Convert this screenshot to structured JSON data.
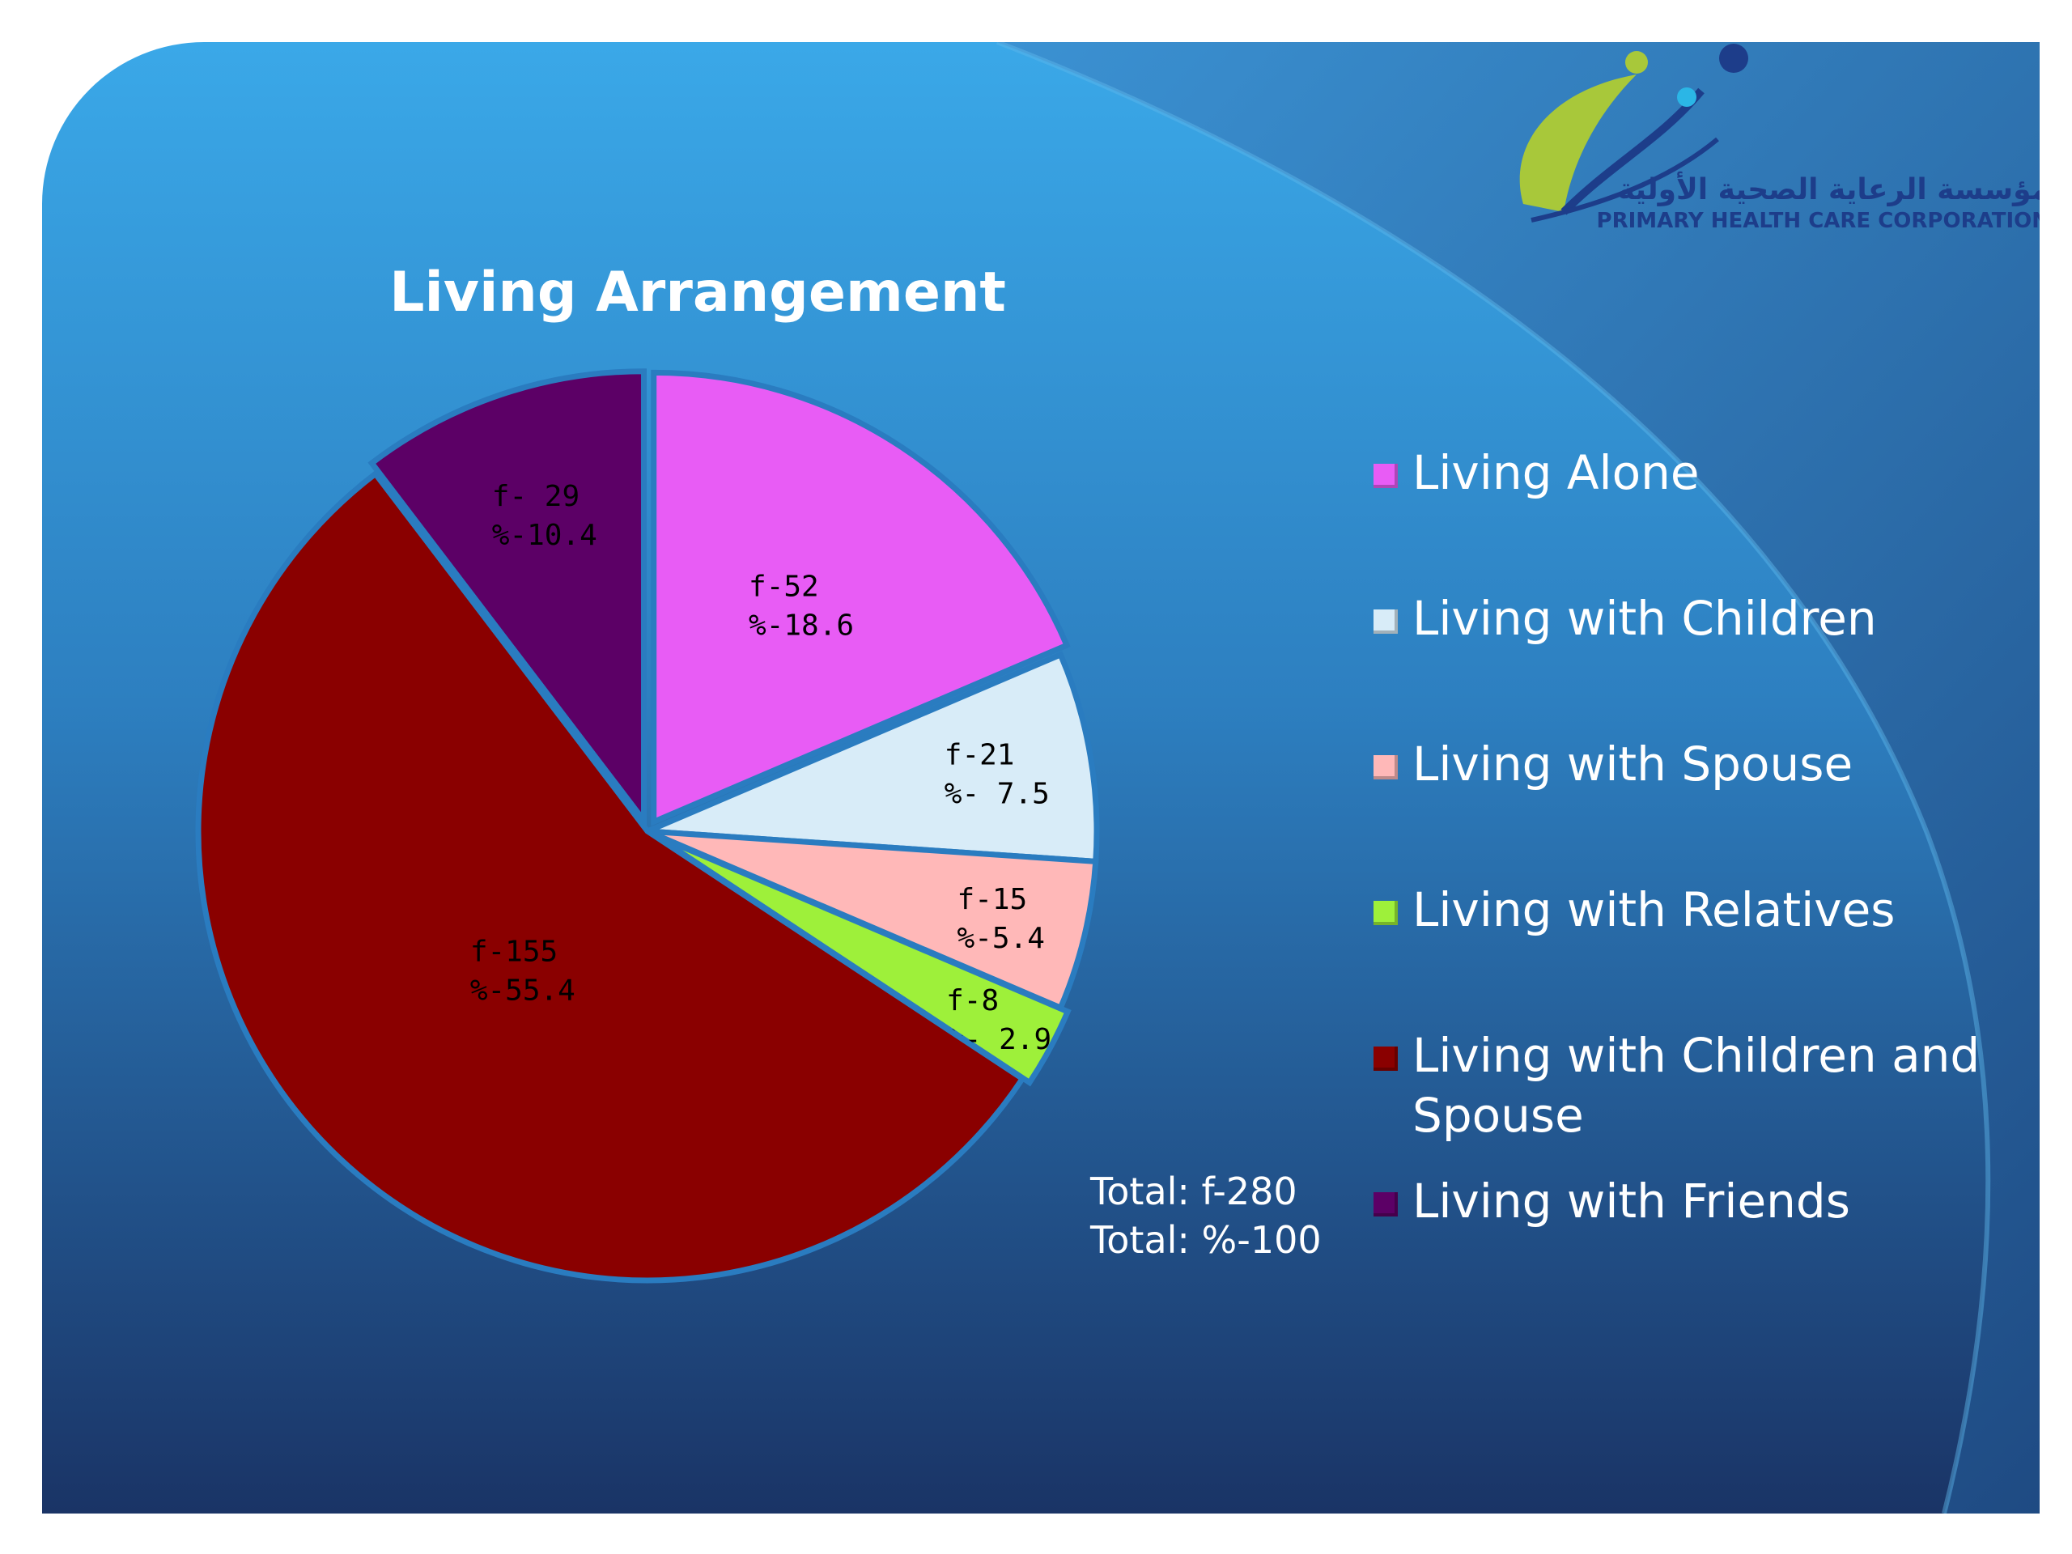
{
  "slide": {
    "colors": {
      "bg_top": "#3aa8e8",
      "bg_bottom": "#1a3466",
      "swoosh": "#2a6fb5"
    }
  },
  "logo": {
    "arabic": "مؤسسة الرعاية الصحية الأولية",
    "english": "PRIMARY  HEALTH CARE CORPORATION",
    "colors": {
      "leaf_green": "#a8c83a",
      "navy": "#1d3d8a",
      "cyan": "#2bb6e6"
    }
  },
  "chart_data": {
    "type": "pie",
    "title": "Living Arrangement",
    "categories": [
      "Living Alone",
      "Living with Children",
      "Living with Spouse",
      "Living with Relatives",
      "Living with Children and Spouse",
      "Living with Friends"
    ],
    "values": [
      52,
      21,
      15,
      8,
      155,
      29
    ],
    "percents": [
      18.6,
      7.5,
      5.4,
      2.9,
      55.4,
      10.4
    ],
    "labels": [
      [
        "f-52",
        "%-18.6"
      ],
      [
        "f-21",
        "%- 7.5"
      ],
      [
        "f-15",
        "%-5.4"
      ],
      [
        "f-8",
        "%- 2.9"
      ],
      [
        "f-155",
        "%-55.4"
      ],
      [
        "f- 29",
        "%-10.4"
      ]
    ],
    "colors": [
      "#e85cf5",
      "#d8ecf8",
      "#ffb8b8",
      "#9ef03a",
      "#8a0000",
      "#5c0066"
    ],
    "legend_position": "right",
    "total": [
      "Total: f-280",
      "Total: %-100"
    ]
  }
}
